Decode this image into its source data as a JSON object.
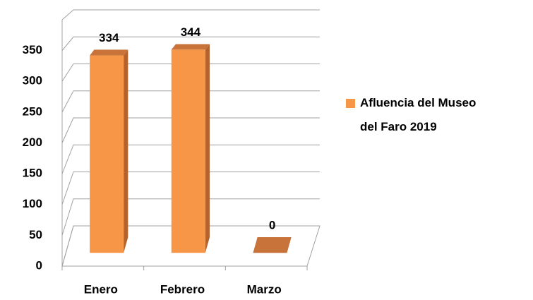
{
  "chart_data": {
    "type": "bar3d",
    "categories": [
      "Enero",
      "Febrero",
      "Marzo"
    ],
    "series": [
      {
        "name": "Afluencia  del Museo del Faro 2019",
        "color": "#f79646",
        "values": [
          334,
          344,
          0
        ]
      }
    ],
    "ylim": [
      0,
      400
    ],
    "yticks": [
      0,
      50,
      100,
      150,
      200,
      250,
      300,
      350
    ],
    "grid": true,
    "legend": "right"
  }
}
